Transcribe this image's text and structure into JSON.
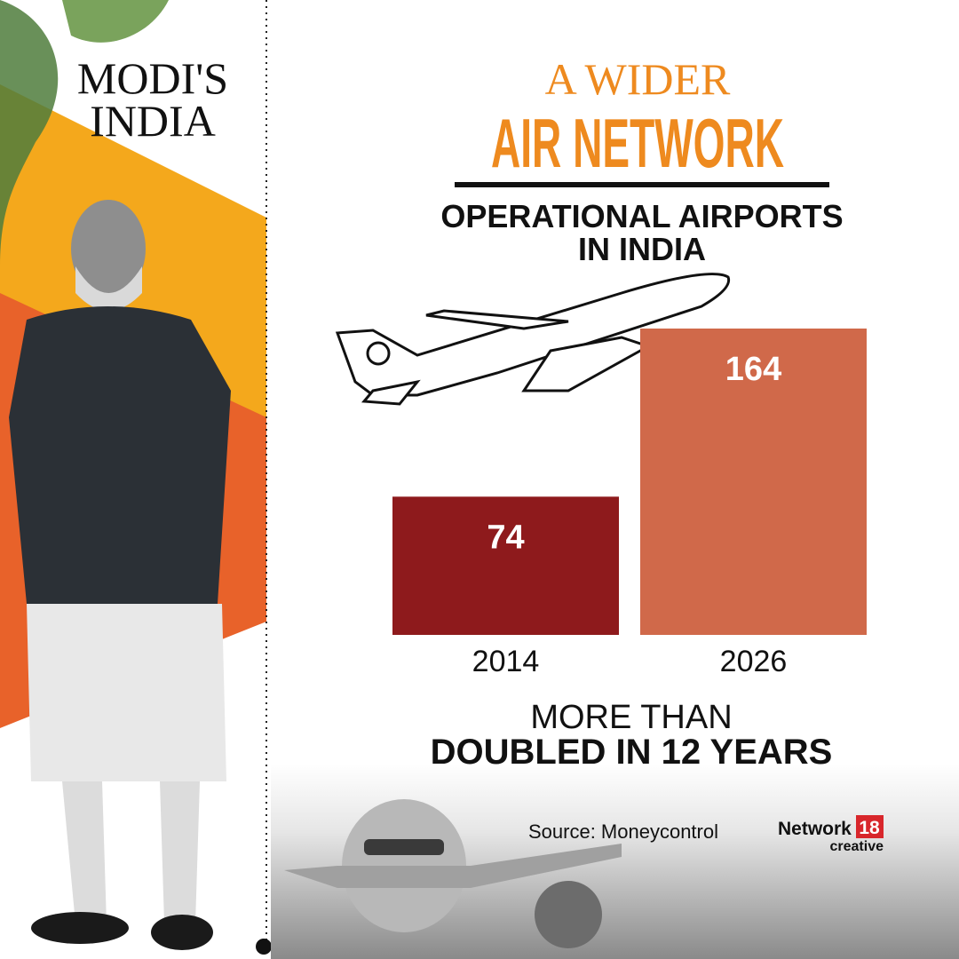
{
  "branding": {
    "series": [
      "MODI'S",
      "INDIA"
    ]
  },
  "chart_data": {
    "type": "bar",
    "title": [
      "A WIDER",
      "AIR NETWORK"
    ],
    "subtitle": [
      "OPERATIONAL AIRPORTS",
      "IN INDIA"
    ],
    "categories": [
      "2014",
      "2026"
    ],
    "values": [
      74,
      164
    ],
    "colors": [
      "#8e1a1c",
      "#d0694a"
    ],
    "annotation": [
      "MORE THAN",
      "DOUBLED IN 12 YEARS"
    ],
    "source": "Source: Moneycontrol"
  },
  "logo": {
    "name": "Network",
    "number": "18",
    "tagline": "creative"
  }
}
